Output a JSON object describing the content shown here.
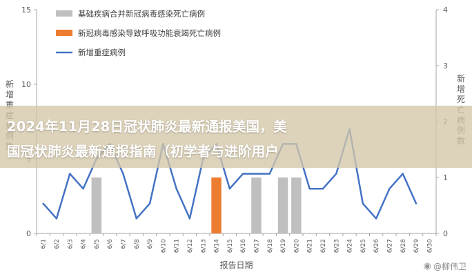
{
  "overlay": {
    "line1": "2024年11月28日冠状肺炎最新通报美国，美",
    "line2": "国冠状肺炎最新通报指南（初学者与进阶用户"
  },
  "watermark": {
    "icon": "weibo-icon",
    "text": "@柳伟卫"
  },
  "chart_data": {
    "type": "bar+line",
    "xlabel": "报告日期",
    "ylabel_left": "新增重症病例数",
    "ylabel_right": "新增死亡病例数",
    "ylim_left": [
      0,
      15
    ],
    "ylim_right": [
      0,
      4
    ],
    "yticks_left": [
      "0",
      "5",
      "10",
      "15"
    ],
    "yticks_right": [
      "0",
      "1",
      "2",
      "3",
      "4"
    ],
    "grid": false,
    "legend": "top-left",
    "categories": [
      "6/1",
      "6/2",
      "6/3",
      "6/4",
      "6/5",
      "6/6",
      "6/7",
      "6/8",
      "6/9",
      "6/10",
      "6/11",
      "6/12",
      "6/13",
      "6/14",
      "6/15",
      "6/16",
      "6/17",
      "6/18",
      "6/19",
      "6/20",
      "6/21",
      "6/22",
      "6/23",
      "6/24",
      "6/25",
      "6/26",
      "6/27",
      "6/28",
      "6/29",
      "6/30"
    ],
    "colors": {
      "gray": "#bfbfbf",
      "orange": "#ed7d31",
      "blue": "#4472c4"
    },
    "series": [
      {
        "name": "基础疾病合并新冠病毒感染死亡病例",
        "type": "bar",
        "axis": "right",
        "color": "#bfbfbf",
        "values": [
          0,
          0,
          0,
          0,
          1,
          0,
          0,
          0,
          0,
          0,
          0,
          0,
          0,
          0,
          0,
          0,
          1,
          0,
          1,
          1,
          0,
          0,
          0,
          0,
          0,
          0,
          0,
          0,
          0,
          0
        ]
      },
      {
        "name": "新冠病毒感染导致呼吸功能衰竭死亡病例",
        "type": "bar",
        "axis": "right",
        "color": "#ed7d31",
        "values": [
          0,
          0,
          0,
          0,
          0,
          0,
          0,
          0,
          0,
          0,
          0,
          0,
          0,
          1,
          0,
          0,
          0,
          0,
          0,
          0,
          0,
          0,
          0,
          0,
          0,
          0,
          0,
          0,
          0,
          0
        ]
      },
      {
        "name": "新增重症病例",
        "type": "line",
        "axis": "left",
        "color": "#4472c4",
        "values": [
          2,
          1,
          4,
          3,
          5,
          6,
          4,
          1,
          2,
          6,
          3,
          1,
          5,
          6,
          3,
          4,
          4,
          4,
          6,
          6,
          3,
          3,
          4,
          7,
          2,
          1,
          3,
          4,
          2,
          null
        ]
      }
    ]
  }
}
